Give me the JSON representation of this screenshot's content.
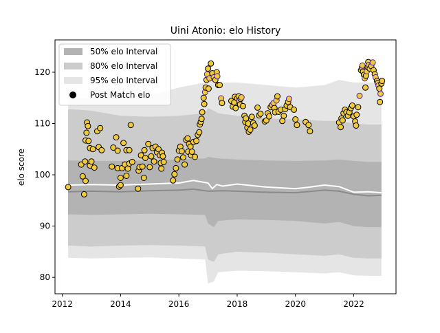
{
  "chart_data": {
    "type": "scatter",
    "title": "Uini Atonio: elo History",
    "xlabel": "",
    "ylabel": "elo score",
    "xlim": [
      2011.75,
      2023.45
    ],
    "ylim": [
      76.8,
      126.3
    ],
    "xticks": [
      2012,
      2014,
      2016,
      2018,
      2020,
      2022
    ],
    "yticks": [
      80,
      90,
      100,
      110,
      120
    ],
    "grid": false,
    "legend": {
      "placement": "top-left",
      "entries": [
        "50% elo Interval",
        "80% elo Interval",
        "95% elo Interval",
        "Post Match elo"
      ]
    },
    "colors": {
      "band50": "#b3b3b3",
      "band80": "#cccccc",
      "band95": "#e5e5e5",
      "mean_line": "#ffffff",
      "median_line": "#8a8a8a",
      "point_fill": "#f0c93c",
      "point_edge": "#000000",
      "point_edge_alt": "#4b1fa8"
    },
    "bands": {
      "x": [
        2012.2,
        2013.0,
        2014.0,
        2015.0,
        2016.0,
        2016.9,
        2017.0,
        2017.2,
        2017.35,
        2018.0,
        2019.0,
        2020.0,
        2021.0,
        2021.5,
        2022.0,
        2022.5,
        2022.95
      ],
      "hi95": [
        114.8,
        115.0,
        115.2,
        115.5,
        117.0,
        118.0,
        121.3,
        118.5,
        118.0,
        118.0,
        117.5,
        117.0,
        117.5,
        118.5,
        118.0,
        118.0,
        118.0
      ],
      "hi80": [
        112.8,
        112.5,
        111.5,
        111.3,
        111.5,
        112.0,
        113.0,
        112.5,
        112.0,
        111.5,
        111.0,
        110.8,
        110.5,
        110.5,
        110.0,
        109.8,
        109.8
      ],
      "hi50": [
        102.8,
        102.7,
        102.7,
        102.8,
        103.0,
        103.2,
        103.5,
        103.3,
        103.2,
        103.0,
        102.8,
        102.7,
        102.8,
        103.0,
        102.7,
        102.5,
        102.5
      ],
      "lo50": [
        92.3,
        92.2,
        92.3,
        92.4,
        92.3,
        92.2,
        90.5,
        89.8,
        91.0,
        91.3,
        91.2,
        91.0,
        90.5,
        90.8,
        90.0,
        89.8,
        89.8
      ],
      "lo80": [
        86.2,
        86.0,
        86.2,
        86.3,
        86.2,
        86.0,
        83.5,
        83.0,
        84.5,
        85.0,
        84.8,
        84.5,
        84.2,
        84.5,
        83.8,
        83.7,
        83.7
      ],
      "lo95": [
        83.8,
        83.7,
        83.8,
        83.9,
        83.7,
        83.5,
        78.8,
        79.2,
        81.0,
        81.3,
        81.2,
        81.0,
        80.8,
        81.0,
        80.4,
        80.3,
        80.3
      ]
    },
    "mean_line": {
      "x": [
        2012.2,
        2013.0,
        2014.0,
        2015.0,
        2016.0,
        2016.5,
        2017.0,
        2017.15,
        2017.3,
        2017.5,
        2018.0,
        2019.0,
        2020.0,
        2020.5,
        2021.0,
        2021.5,
        2022.0,
        2022.5,
        2022.95
      ],
      "y": [
        98.0,
        98.1,
        98.0,
        98.2,
        98.4,
        98.9,
        98.4,
        97.3,
        98.1,
        97.8,
        98.2,
        97.6,
        97.3,
        97.6,
        98.0,
        97.7,
        96.6,
        96.7,
        96.5
      ]
    },
    "median_line": {
      "x": [
        2012.2,
        2013.0,
        2014.0,
        2015.0,
        2016.0,
        2016.5,
        2017.0,
        2017.5,
        2018.0,
        2019.0,
        2020.0,
        2021.0,
        2021.5,
        2022.0,
        2022.5,
        2022.95
      ],
      "y": [
        96.7,
        96.8,
        96.7,
        96.9,
        97.0,
        97.2,
        96.8,
        96.9,
        96.8,
        96.6,
        96.5,
        97.0,
        96.8,
        96.2,
        95.9,
        96.0
      ]
    },
    "points": [
      [
        2012.2,
        97.6
      ],
      [
        2012.65,
        102.0
      ],
      [
        2012.7,
        99.7
      ],
      [
        2012.75,
        96.2
      ],
      [
        2012.78,
        102.6
      ],
      [
        2012.8,
        98.8
      ],
      [
        2012.8,
        106.7
      ],
      [
        2012.83,
        108.2
      ],
      [
        2012.85,
        110.2
      ],
      [
        2012.88,
        109.5
      ],
      [
        2012.9,
        106.6
      ],
      [
        2012.95,
        105.2
      ],
      [
        2012.95,
        101.8
      ],
      [
        2013.0,
        102.6
      ],
      [
        2013.05,
        105.0
      ],
      [
        2013.1,
        101.4
      ],
      [
        2013.2,
        108.5
      ],
      [
        2013.25,
        105.4
      ],
      [
        2013.3,
        109.1
      ],
      [
        2013.35,
        104.8
      ],
      [
        2013.7,
        101.6
      ],
      [
        2013.75,
        105.3
      ],
      [
        2013.85,
        107.3
      ],
      [
        2013.9,
        104.7
      ],
      [
        2013.9,
        101.3
      ],
      [
        2013.95,
        97.7
      ],
      [
        2014.0,
        98.0
      ],
      [
        2014.0,
        99.4
      ],
      [
        2014.05,
        101.3
      ],
      [
        2014.1,
        106.2
      ],
      [
        2014.15,
        102.0
      ],
      [
        2014.2,
        99.8
      ],
      [
        2014.2,
        104.8
      ],
      [
        2014.25,
        101.2
      ],
      [
        2014.3,
        102.2
      ],
      [
        2014.3,
        104.8
      ],
      [
        2014.35,
        109.7
      ],
      [
        2014.4,
        102.5
      ],
      [
        2014.6,
        97.3
      ],
      [
        2014.62,
        100.8
      ],
      [
        2014.65,
        101.5
      ],
      [
        2014.7,
        103.8
      ],
      [
        2014.75,
        101.6
      ],
      [
        2014.8,
        99.4
      ],
      [
        2014.82,
        104.8
      ],
      [
        2014.85,
        103.3
      ],
      [
        2014.95,
        106.0
      ],
      [
        2015.0,
        101.5
      ],
      [
        2015.05,
        103.6
      ],
      [
        2015.1,
        105.2
      ],
      [
        2015.15,
        102.6
      ],
      [
        2015.2,
        105.5
      ],
      [
        2015.25,
        104.4
      ],
      [
        2015.3,
        105.0
      ],
      [
        2015.35,
        103.8
      ],
      [
        2015.38,
        102.3
      ],
      [
        2015.4,
        101.2
      ],
      [
        2015.42,
        104.3
      ],
      [
        2015.45,
        103.6
      ],
      [
        2015.48,
        102.5
      ],
      [
        2015.8,
        98.9
      ],
      [
        2015.85,
        100.1
      ],
      [
        2015.9,
        101.3
      ],
      [
        2015.95,
        103.0
      ],
      [
        2016.0,
        104.7
      ],
      [
        2016.05,
        105.5
      ],
      [
        2016.1,
        104.6
      ],
      [
        2016.15,
        103.4
      ],
      [
        2016.2,
        102.0
      ],
      [
        2016.25,
        106.8
      ],
      [
        2016.3,
        107.1
      ],
      [
        2016.32,
        104.5
      ],
      [
        2016.35,
        106.0
      ],
      [
        2016.4,
        105.5
      ],
      [
        2016.42,
        103.8
      ],
      [
        2016.45,
        104.5
      ],
      [
        2016.5,
        106.4
      ],
      [
        2016.55,
        103.5
      ],
      [
        2016.6,
        106.6
      ],
      [
        2016.65,
        107.8
      ],
      [
        2016.7,
        108.3
      ],
      [
        2016.72,
        109.8
      ],
      [
        2016.75,
        110.3
      ],
      [
        2016.78,
        110.9
      ],
      [
        2016.8,
        112.2
      ],
      [
        2016.85,
        115.0
      ],
      [
        2016.87,
        113.8
      ],
      [
        2016.9,
        116.1
      ],
      [
        2016.92,
        117.0
      ],
      [
        2016.95,
        118.5
      ],
      [
        2016.97,
        119.6
      ],
      [
        2017.0,
        120.7
      ],
      [
        2017.02,
        116.8
      ],
      [
        2017.05,
        118.8
      ],
      [
        2017.1,
        121.7
      ],
      [
        2017.15,
        119.8
      ],
      [
        2017.2,
        119.0
      ],
      [
        2017.25,
        118.5
      ],
      [
        2017.3,
        120.0
      ],
      [
        2017.32,
        119.2
      ],
      [
        2017.35,
        117.5
      ],
      [
        2017.4,
        117.5
      ],
      [
        2017.45,
        114.9
      ],
      [
        2017.48,
        114.0
      ],
      [
        2017.8,
        114.4
      ],
      [
        2017.85,
        113.3
      ],
      [
        2017.9,
        114.1
      ],
      [
        2017.92,
        115.2
      ],
      [
        2017.95,
        113.0
      ],
      [
        2018.0,
        114.9
      ],
      [
        2018.05,
        115.3
      ],
      [
        2018.08,
        114.5
      ],
      [
        2018.1,
        113.7
      ],
      [
        2018.12,
        114.8
      ],
      [
        2018.15,
        115.1
      ],
      [
        2018.2,
        113.4
      ],
      [
        2018.25,
        111.5
      ],
      [
        2018.28,
        110.3
      ],
      [
        2018.3,
        111.0
      ],
      [
        2018.35,
        109.2
      ],
      [
        2018.38,
        110.0
      ],
      [
        2018.4,
        108.4
      ],
      [
        2018.45,
        108.8
      ],
      [
        2018.5,
        111.3
      ],
      [
        2018.55,
        110.1
      ],
      [
        2018.6,
        109.6
      ],
      [
        2018.7,
        113.1
      ],
      [
        2018.75,
        111.6
      ],
      [
        2018.8,
        111.9
      ],
      [
        2018.95,
        110.4
      ],
      [
        2019.0,
        110.6
      ],
      [
        2019.05,
        112.0
      ],
      [
        2019.1,
        111.4
      ],
      [
        2019.15,
        113.2
      ],
      [
        2019.2,
        113.6
      ],
      [
        2019.25,
        114.0
      ],
      [
        2019.28,
        113.0
      ],
      [
        2019.3,
        112.2
      ],
      [
        2019.35,
        114.5
      ],
      [
        2019.38,
        115.3
      ],
      [
        2019.42,
        112.3
      ],
      [
        2019.5,
        112.7
      ],
      [
        2019.55,
        110.5
      ],
      [
        2019.6,
        111.5
      ],
      [
        2019.65,
        112.8
      ],
      [
        2019.7,
        113.5
      ],
      [
        2019.75,
        114.2
      ],
      [
        2019.78,
        114.8
      ],
      [
        2019.82,
        113.2
      ],
      [
        2019.95,
        112.7
      ],
      [
        2020.0,
        110.8
      ],
      [
        2020.05,
        109.7
      ],
      [
        2020.35,
        110.3
      ],
      [
        2020.45,
        109.7
      ],
      [
        2020.5,
        108.5
      ],
      [
        2021.5,
        110.2
      ],
      [
        2021.55,
        109.3
      ],
      [
        2021.58,
        111.0
      ],
      [
        2021.62,
        110.6
      ],
      [
        2021.65,
        112.0
      ],
      [
        2021.7,
        112.7
      ],
      [
        2021.75,
        112.2
      ],
      [
        2021.8,
        111.5
      ],
      [
        2021.85,
        112.2
      ],
      [
        2021.9,
        113.0
      ],
      [
        2021.95,
        113.5
      ],
      [
        2022.0,
        111.4
      ],
      [
        2022.05,
        110.4
      ],
      [
        2022.08,
        109.6
      ],
      [
        2022.1,
        111.7
      ],
      [
        2022.15,
        113.2
      ],
      [
        2022.2,
        115.4
      ],
      [
        2022.25,
        120.4
      ],
      [
        2022.28,
        120.9
      ],
      [
        2022.3,
        121.3
      ],
      [
        2022.32,
        120.1
      ],
      [
        2022.35,
        119.5
      ],
      [
        2022.38,
        118.8
      ],
      [
        2022.4,
        117.0
      ],
      [
        2022.42,
        119.3
      ],
      [
        2022.45,
        120.2
      ],
      [
        2022.48,
        121.0
      ],
      [
        2022.5,
        122.0
      ],
      [
        2022.52,
        121.4
      ],
      [
        2022.55,
        120.7
      ],
      [
        2022.6,
        121.2
      ],
      [
        2022.65,
        121.9
      ],
      [
        2022.68,
        120.4
      ],
      [
        2022.72,
        119.6
      ],
      [
        2022.75,
        119.0
      ],
      [
        2022.8,
        118.3
      ],
      [
        2022.83,
        117.9
      ],
      [
        2022.85,
        117.4
      ],
      [
        2022.88,
        116.8
      ],
      [
        2022.9,
        114.2
      ],
      [
        2022.92,
        115.8
      ],
      [
        2022.95,
        117.8
      ],
      [
        2022.97,
        118.3
      ]
    ]
  }
}
